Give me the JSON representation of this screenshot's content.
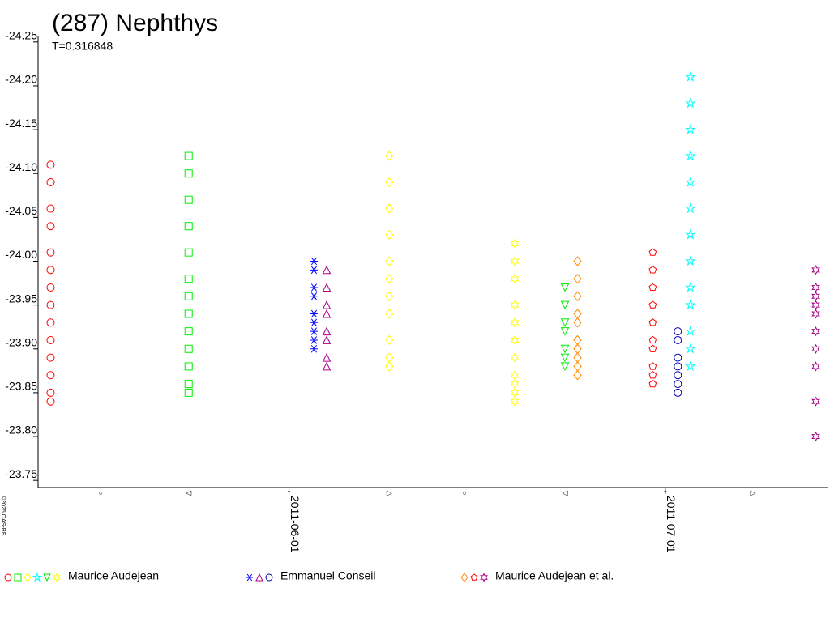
{
  "chart_data": {
    "type": "scatter",
    "title": "(287) Nephthys",
    "subtitle": "T=0.316848",
    "watermark": "©2025 OAS-RB",
    "y_inverted": true,
    "ylim": [
      -24.26,
      -23.74
    ],
    "yticks": [
      -24.25,
      {
        "value": -24.2,
        "label": "-24.20"
      },
      -24.15,
      {
        "value": -24.1,
        "label": "-24.10"
      },
      -24.05,
      {
        "value": -24,
        "label": "-24.00"
      },
      -23.95,
      {
        "value": -23.9,
        "label": "-23.90"
      },
      -23.85,
      {
        "value": -23.8,
        "label": "-23.80"
      },
      -23.75
    ],
    "xlim": [
      "2011-05-12",
      "2011-07-14"
    ],
    "xticks": [
      "2011-06-01",
      "2011-07-01"
    ],
    "moon_phases": [
      {
        "x": "2011-05-17",
        "label": "○"
      },
      {
        "x": "2011-05-24",
        "label": "◁"
      },
      {
        "x": "2011-06-01",
        "label": "*"
      },
      {
        "x": "2011-06-09",
        "label": "▷"
      },
      {
        "x": "2011-06-15",
        "label": "○"
      },
      {
        "x": "2011-06-23",
        "label": "◁"
      },
      {
        "x": "2011-07-01",
        "label": "*"
      },
      {
        "x": "2011-07-08",
        "label": "▷"
      }
    ],
    "observers": [
      {
        "name": "Maurice Audejean",
        "sessions": [
          {
            "color": "#ff0000",
            "marker": "circle",
            "x": "2011-05-13",
            "values": [
              -24.11,
              -24.09,
              -24.06,
              -24.04,
              -24.01,
              -23.99,
              -23.97,
              -23.95,
              -23.93,
              -23.91,
              -23.89,
              -23.87,
              -23.85,
              -23.84
            ]
          },
          {
            "color": "#00ee00",
            "marker": "square",
            "x": "2011-05-24",
            "values": [
              -24.12,
              -24.1,
              -24.07,
              -24.04,
              -24.01,
              -23.98,
              -23.96,
              -23.94,
              -23.92,
              -23.9,
              -23.88,
              -23.86,
              -23.85
            ]
          },
          {
            "color": "#ffff00",
            "marker": "diamond",
            "x": "2011-06-09",
            "values": [
              -24.12,
              -24.09,
              -24.06,
              -24.03,
              -24.0,
              -23.98,
              -23.96,
              -23.94,
              -23.91,
              -23.89,
              -23.88
            ]
          },
          {
            "color": "#00ffff",
            "marker": "star",
            "x": "2011-07-03",
            "values": [
              -24.21,
              -24.18,
              -24.15,
              -24.12,
              -24.09,
              -24.06,
              -24.03,
              -24.0,
              -23.97,
              -23.95,
              -23.92,
              -23.9,
              -23.88
            ]
          },
          {
            "color": "#00ee00",
            "marker": "tri-down",
            "x": "2011-06-23",
            "values": [
              -23.97,
              -23.95,
              -23.93,
              -23.92,
              -23.9,
              -23.89,
              -23.88
            ]
          },
          {
            "color": "#ffff00",
            "marker": "hexagram",
            "x": "2011-06-19",
            "values": [
              -24.02,
              -24.0,
              -23.98,
              -23.95,
              -23.93,
              -23.91,
              -23.89,
              -23.87,
              -23.86,
              -23.85,
              -23.84
            ]
          }
        ]
      },
      {
        "name": "Emmanuel Conseil",
        "sessions": [
          {
            "color": "#0000ff",
            "marker": "asterisk",
            "x": "2011-06-03",
            "values": [
              -24.0,
              -23.99,
              -23.97,
              -23.96,
              -23.94,
              -23.93,
              -23.92,
              -23.91,
              -23.9
            ]
          },
          {
            "color": "#aa0088",
            "marker": "tri-up",
            "x": "2011-06-04",
            "values": [
              -23.99,
              -23.97,
              -23.95,
              -23.94,
              -23.92,
              -23.91,
              -23.89,
              -23.88
            ]
          },
          {
            "color": "#0000aa",
            "marker": "circle",
            "x": "2011-07-02",
            "values": [
              -23.92,
              -23.91,
              -23.89,
              -23.88,
              -23.87,
              -23.86,
              -23.85
            ]
          }
        ]
      },
      {
        "name": "Maurice Audejean et al.",
        "sessions": [
          {
            "color": "#ff8800",
            "marker": "diamond",
            "x": "2011-06-24",
            "values": [
              -24.0,
              -23.98,
              -23.96,
              -23.94,
              -23.93,
              -23.91,
              -23.9,
              -23.89,
              -23.88,
              -23.87
            ]
          },
          {
            "color": "#ff0000",
            "marker": "pentagon",
            "x": "2011-06-30",
            "values": [
              -24.01,
              -23.99,
              -23.97,
              -23.95,
              -23.93,
              -23.91,
              -23.9,
              -23.88,
              -23.87,
              -23.86
            ]
          },
          {
            "color": "#aa0088",
            "marker": "hexagram",
            "x": "2011-07-13",
            "values": [
              -23.99,
              -23.97,
              -23.96,
              -23.95,
              -23.94,
              -23.92,
              -23.9,
              -23.88,
              -23.84,
              -23.8
            ]
          }
        ]
      }
    ]
  }
}
